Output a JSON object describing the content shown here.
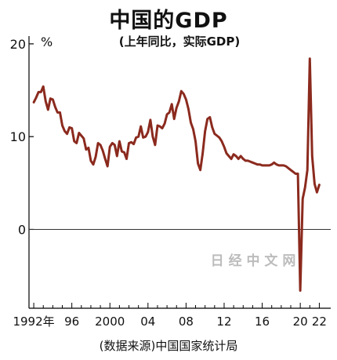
{
  "title": "中国的GDP",
  "subtitle": "(上年同比，实际GDP)",
  "source": "(数据来源)中国国家统计局",
  "watermark": "日 经 中 文 网",
  "colors": {
    "line": "#8b2a1e",
    "axis": "#000000",
    "zero_line": "#333333",
    "watermark": "#bcbcbc"
  },
  "chart_data": {
    "type": "line",
    "title": "中国的GDP",
    "subtitle": "(上年同比，实际GDP)",
    "ylabel": "%",
    "xlabel": "",
    "ylim": [
      -8.5,
      20.5
    ],
    "xlim": [
      1991.5,
      2023.2
    ],
    "yticks": [
      0,
      10,
      20
    ],
    "xticks": [
      {
        "value": 1992,
        "label": "1992年"
      },
      {
        "value": 1996,
        "label": "96"
      },
      {
        "value": 2000,
        "label": "2000"
      },
      {
        "value": 2004,
        "label": "04"
      },
      {
        "value": 2008,
        "label": "08"
      },
      {
        "value": 2012,
        "label": "12"
      },
      {
        "value": 2016,
        "label": "16"
      },
      {
        "value": 2020,
        "label": "20"
      },
      {
        "value": 2022,
        "label": "22"
      }
    ],
    "grid": false,
    "series": [
      {
        "points": [
          [
            1992.0,
            13.7
          ],
          [
            1992.25,
            14.2
          ],
          [
            1992.5,
            14.8
          ],
          [
            1992.75,
            14.8
          ],
          [
            1993.0,
            15.4
          ],
          [
            1993.25,
            13.8
          ],
          [
            1993.5,
            12.9
          ],
          [
            1993.75,
            14.1
          ],
          [
            1994.0,
            14.0
          ],
          [
            1994.25,
            13.2
          ],
          [
            1994.5,
            12.6
          ],
          [
            1994.75,
            12.6
          ],
          [
            1995.0,
            11.2
          ],
          [
            1995.25,
            10.6
          ],
          [
            1995.5,
            10.3
          ],
          [
            1995.75,
            11.0
          ],
          [
            1996.0,
            10.9
          ],
          [
            1996.25,
            9.5
          ],
          [
            1996.5,
            9.3
          ],
          [
            1996.75,
            10.4
          ],
          [
            1997.0,
            10.1
          ],
          [
            1997.25,
            9.8
          ],
          [
            1997.5,
            8.6
          ],
          [
            1997.75,
            8.8
          ],
          [
            1998.0,
            7.4
          ],
          [
            1998.25,
            7.0
          ],
          [
            1998.5,
            7.8
          ],
          [
            1998.75,
            9.3
          ],
          [
            1999.0,
            9.1
          ],
          [
            1999.25,
            8.5
          ],
          [
            1999.5,
            7.6
          ],
          [
            1999.75,
            6.8
          ],
          [
            2000.0,
            8.9
          ],
          [
            2000.25,
            9.3
          ],
          [
            2000.5,
            9.1
          ],
          [
            2000.75,
            7.9
          ],
          [
            2001.0,
            9.5
          ],
          [
            2001.25,
            8.4
          ],
          [
            2001.5,
            8.3
          ],
          [
            2001.75,
            7.6
          ],
          [
            2002.0,
            9.3
          ],
          [
            2002.25,
            9.4
          ],
          [
            2002.5,
            9.2
          ],
          [
            2002.75,
            9.9
          ],
          [
            2003.0,
            10.0
          ],
          [
            2003.25,
            11.1
          ],
          [
            2003.5,
            9.9
          ],
          [
            2003.75,
            10.0
          ],
          [
            2004.0,
            10.5
          ],
          [
            2004.25,
            11.8
          ],
          [
            2004.5,
            10.0
          ],
          [
            2004.75,
            9.1
          ],
          [
            2005.0,
            11.2
          ],
          [
            2005.25,
            11.1
          ],
          [
            2005.5,
            10.9
          ],
          [
            2005.75,
            11.4
          ],
          [
            2006.0,
            12.4
          ],
          [
            2006.25,
            12.6
          ],
          [
            2006.5,
            13.5
          ],
          [
            2006.75,
            11.9
          ],
          [
            2007.0,
            13.1
          ],
          [
            2007.25,
            13.8
          ],
          [
            2007.5,
            14.9
          ],
          [
            2007.75,
            14.6
          ],
          [
            2008.0,
            14.0
          ],
          [
            2008.25,
            13.0
          ],
          [
            2008.5,
            11.5
          ],
          [
            2008.75,
            10.8
          ],
          [
            2009.0,
            9.5
          ],
          [
            2009.25,
            7.1
          ],
          [
            2009.5,
            6.4
          ],
          [
            2009.75,
            8.2
          ],
          [
            2010.0,
            10.6
          ],
          [
            2010.25,
            11.9
          ],
          [
            2010.5,
            12.1
          ],
          [
            2010.75,
            11.0
          ],
          [
            2011.0,
            10.3
          ],
          [
            2011.25,
            10.1
          ],
          [
            2011.5,
            9.9
          ],
          [
            2011.75,
            9.5
          ],
          [
            2012.0,
            8.9
          ],
          [
            2012.25,
            8.2
          ],
          [
            2012.5,
            7.9
          ],
          [
            2012.75,
            7.6
          ],
          [
            2013.0,
            8.1
          ],
          [
            2013.25,
            7.9
          ],
          [
            2013.5,
            7.6
          ],
          [
            2013.75,
            7.9
          ],
          [
            2014.0,
            7.6
          ],
          [
            2014.25,
            7.4
          ],
          [
            2014.5,
            7.4
          ],
          [
            2014.75,
            7.3
          ],
          [
            2015.0,
            7.2
          ],
          [
            2015.25,
            7.1
          ],
          [
            2015.5,
            7.0
          ],
          [
            2015.75,
            7.0
          ],
          [
            2016.0,
            6.9
          ],
          [
            2016.25,
            6.9
          ],
          [
            2016.5,
            6.9
          ],
          [
            2016.75,
            6.9
          ],
          [
            2017.0,
            7.0
          ],
          [
            2017.25,
            7.2
          ],
          [
            2017.5,
            7.0
          ],
          [
            2017.75,
            6.9
          ],
          [
            2018.0,
            6.9
          ],
          [
            2018.25,
            6.9
          ],
          [
            2018.5,
            6.8
          ],
          [
            2018.75,
            6.6
          ],
          [
            2019.0,
            6.4
          ],
          [
            2019.25,
            6.2
          ],
          [
            2019.5,
            6.0
          ],
          [
            2019.75,
            6.0
          ],
          [
            2020.0,
            -6.6
          ],
          [
            2020.25,
            3.3
          ],
          [
            2020.5,
            4.5
          ],
          [
            2020.75,
            6.4
          ],
          [
            2021.0,
            18.4
          ],
          [
            2021.25,
            7.9
          ],
          [
            2021.5,
            4.9
          ],
          [
            2021.75,
            4.0
          ],
          [
            2022.0,
            4.8
          ]
        ]
      }
    ]
  }
}
